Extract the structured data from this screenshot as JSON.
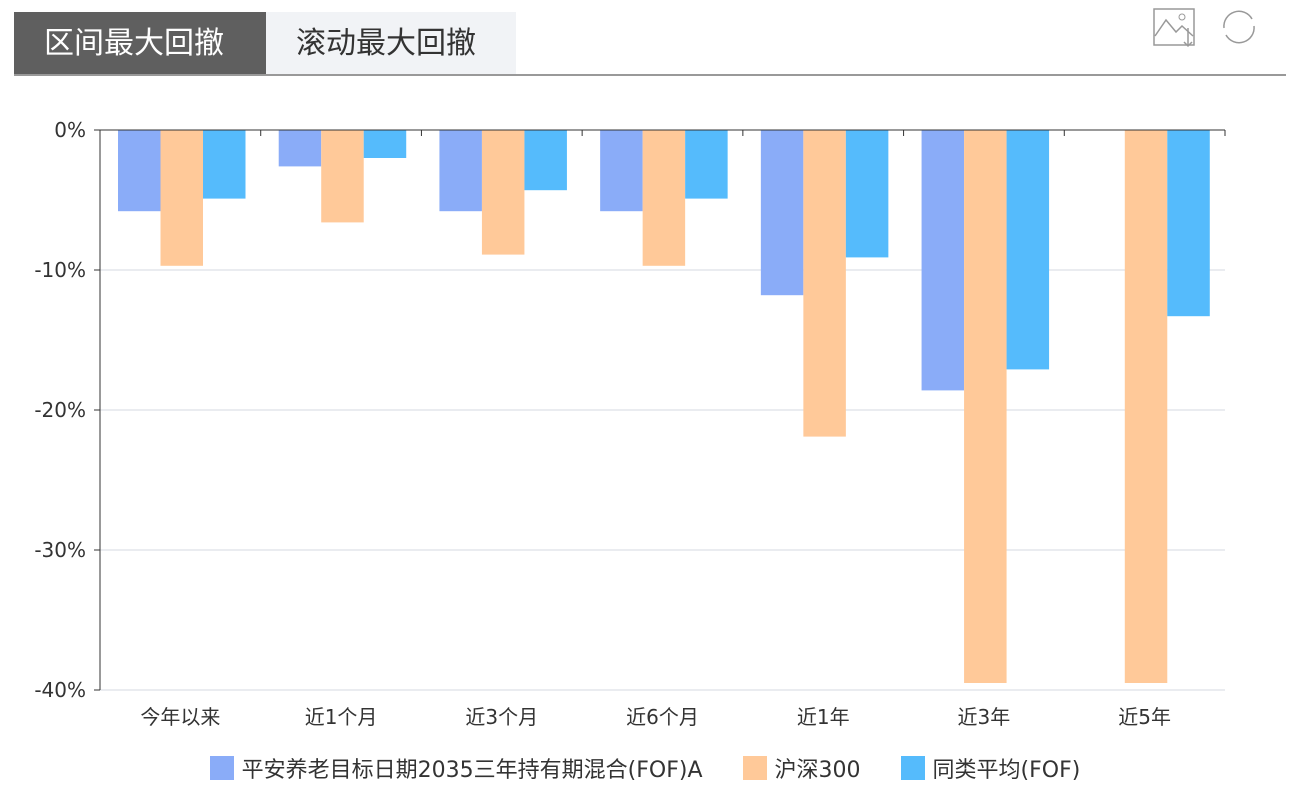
{
  "tabs": [
    {
      "label": "区间最大回撤",
      "active": true
    },
    {
      "label": "滚动最大回撤",
      "active": false
    }
  ],
  "toolbar": {
    "save_icon": "save-image-icon",
    "refresh_icon": "refresh-icon"
  },
  "chart_data": {
    "type": "bar",
    "categories": [
      "今年以来",
      "近1个月",
      "近3个月",
      "近6个月",
      "近1年",
      "近3年",
      "近5年"
    ],
    "ylim": [
      -40,
      0
    ],
    "yticks": [
      0,
      -10,
      -20,
      -30,
      -40
    ],
    "ytick_labels": [
      "0%",
      "-10%",
      "-20%",
      "-30%",
      "-40%"
    ],
    "grid": true,
    "legend_position": "bottom",
    "series": [
      {
        "name": "平安养老目标日期2035三年持有期混合(FOF)A",
        "color": "#8aacf8",
        "values": [
          -5.8,
          -2.6,
          -5.8,
          -5.8,
          -11.8,
          -18.6,
          null
        ]
      },
      {
        "name": "沪深300",
        "color": "#ffc999",
        "values": [
          -9.7,
          -6.6,
          -8.9,
          -9.7,
          -21.9,
          -39.5,
          -39.5
        ]
      },
      {
        "name": "同类平均(FOF)",
        "color": "#55bbfc",
        "values": [
          -4.9,
          -2.0,
          -4.3,
          -4.9,
          -9.1,
          -17.1,
          -13.3
        ]
      }
    ]
  }
}
